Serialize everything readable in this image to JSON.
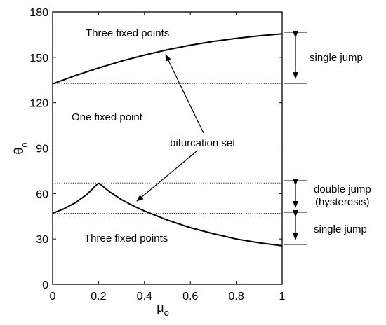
{
  "chart_data": {
    "type": "line",
    "xlabel": "μ",
    "xlabel_sub": "o",
    "ylabel": "θ",
    "ylabel_sub": "o",
    "xlim": [
      0,
      1
    ],
    "ylim": [
      0,
      180
    ],
    "x_ticks": [
      "0",
      "0.2",
      "0.4",
      "0.6",
      "0.8",
      "1"
    ],
    "y_ticks": [
      "0",
      "30",
      "60",
      "90",
      "120",
      "150",
      "180"
    ],
    "series": [
      {
        "points": [
          [
            0,
            132.5
          ],
          [
            0.1,
            138
          ],
          [
            0.2,
            143
          ],
          [
            0.3,
            147.5
          ],
          [
            0.4,
            151.5
          ],
          [
            0.5,
            155
          ],
          [
            0.6,
            158
          ],
          [
            0.7,
            160.5
          ],
          [
            0.8,
            162.5
          ],
          [
            0.9,
            164.2
          ],
          [
            1.0,
            165.5
          ]
        ]
      },
      {
        "points": [
          [
            0,
            47
          ],
          [
            0.05,
            50
          ],
          [
            0.1,
            54
          ],
          [
            0.15,
            59.5
          ],
          [
            0.2,
            67
          ]
        ]
      },
      {
        "points": [
          [
            0.2,
            67
          ],
          [
            0.25,
            61
          ],
          [
            0.3,
            56
          ],
          [
            0.35,
            52
          ],
          [
            0.4,
            48.5
          ],
          [
            0.5,
            42.5
          ],
          [
            0.6,
            37.5
          ],
          [
            0.7,
            33.5
          ],
          [
            0.8,
            30
          ],
          [
            0.9,
            27.5
          ],
          [
            1.0,
            25.5
          ]
        ]
      }
    ],
    "reference_lines_y": [
      132.5,
      67,
      47
    ],
    "annotations": {
      "region_top": "Three fixed points",
      "region_middle": "One fixed point",
      "region_bottom": "Three fixed points",
      "bifurcation": "bifurcation set",
      "single_jump_top": "single jump",
      "double_jump": "double jump",
      "hysteresis": "(hysteresis)",
      "single_jump_bottom": "single jump"
    },
    "grid": false
  }
}
